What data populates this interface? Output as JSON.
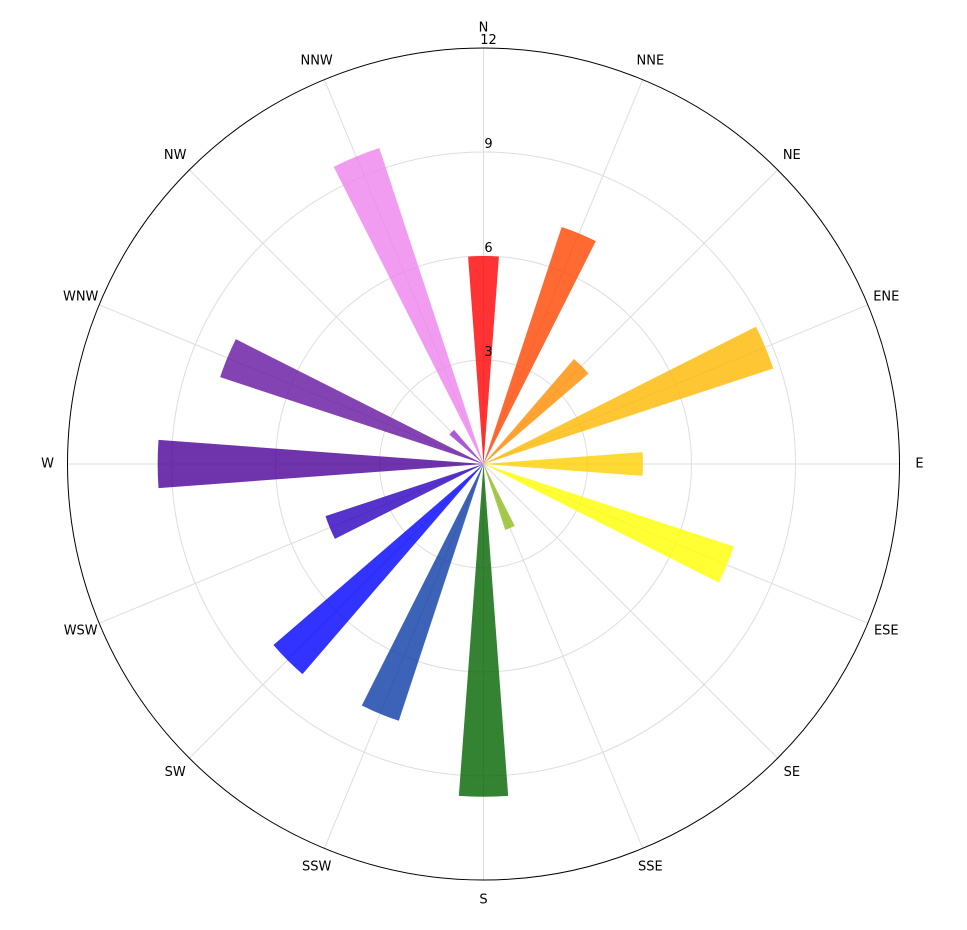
{
  "chart_data": {
    "type": "bar",
    "subtype": "polar",
    "categories": [
      "N",
      "NNE",
      "NE",
      "ENE",
      "E",
      "ESE",
      "SE",
      "SSE",
      "S",
      "SSW",
      "SW",
      "WSW",
      "W",
      "WNW",
      "NW",
      "NNW"
    ],
    "values": [
      6.0,
      7.2,
      4.0,
      8.8,
      4.6,
      7.6,
      0.0,
      2.0,
      9.6,
      7.8,
      8.0,
      4.8,
      9.4,
      8.0,
      1.3,
      9.6
    ],
    "colors": [
      "#ff0000",
      "#ff4500",
      "#ff8c00",
      "#ffb800",
      "#ffd000",
      "#ffff00",
      "#9acd32",
      "#8fbc1e",
      "#006400",
      "#0c3ca8",
      "#0000ff",
      "#2c00bd",
      "#4b0096",
      "#65149f",
      "#9932cc",
      "#ee82ee"
    ],
    "radial_ticks": [
      "3",
      "6",
      "9",
      "12"
    ],
    "r_max": 12,
    "start": "top",
    "direction": "clockwise",
    "grid": true,
    "title": "",
    "xlabel": "",
    "ylabel": ""
  }
}
